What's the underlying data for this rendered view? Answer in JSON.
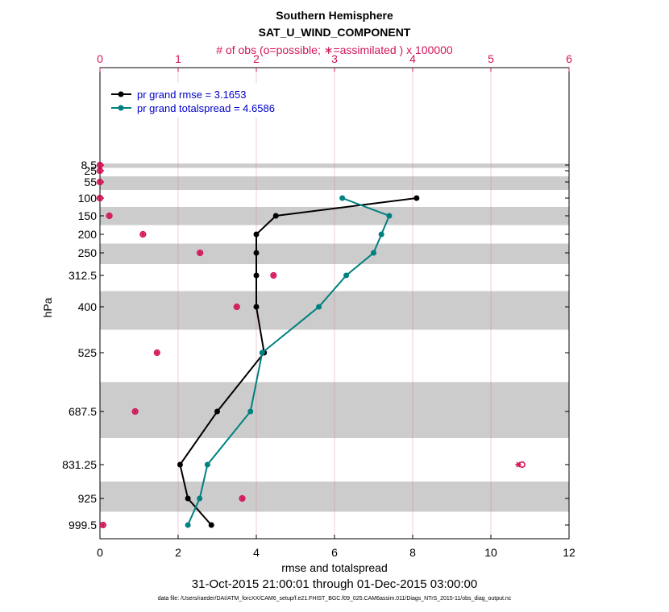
{
  "chart_data": {
    "type": "line",
    "title": "Southern Hemisphere",
    "subtitle": "SAT_U_WIND_COMPONENT",
    "top_axis_label": "# of obs (o=possible; ∗=assimilated ) x 100000",
    "xlabel": "rmse and totalspread",
    "ylabel": "hPa",
    "date_range": "31-Oct-2015 21:00:01 through 01-Dec-2015 03:00:00",
    "data_file": "data file: /Users/raeder/DAI/ATM_forcXX/CAM6_setup/f.e21.FHIST_BGC.f09_025.CAM6assim.011/Diags_NTrS_2015-11/obs_diag_output.nc",
    "xlim": [
      0,
      12
    ],
    "xticks": [
      "0",
      "2",
      "4",
      "6",
      "8",
      "10",
      "12"
    ],
    "top_xlim": [
      0,
      6
    ],
    "top_xticks": [
      "0",
      "1",
      "2",
      "3",
      "4",
      "5",
      "6"
    ],
    "levels": [
      8.5,
      25,
      55,
      100,
      150,
      200,
      250,
      312.5,
      400,
      525,
      687.5,
      831.25,
      925,
      999.5
    ],
    "level_labels": [
      "8.5",
      "25",
      "55",
      "100",
      "150",
      "200",
      "250",
      "312.5",
      "400",
      "525",
      "687.5",
      "831.25",
      "925",
      "999.5"
    ],
    "series": [
      {
        "name": "pr grand rmse = 3.1653",
        "color": "#000000",
        "levels": [
          100,
          150,
          200,
          250,
          312.5,
          400,
          525,
          687.5,
          831.25,
          925,
          999.5
        ],
        "values": [
          8.1,
          4.5,
          4.0,
          4.0,
          4.0,
          4.0,
          4.2,
          3.0,
          2.05,
          2.25,
          2.85
        ]
      },
      {
        "name": "pr grand totalspread = 4.6586",
        "color": "#008080",
        "levels": [
          100,
          150,
          200,
          250,
          312.5,
          400,
          525,
          687.5,
          831.25,
          925,
          999.5
        ],
        "values": [
          6.2,
          7.4,
          7.2,
          7.0,
          6.3,
          5.6,
          4.15,
          3.85,
          2.75,
          2.55,
          2.25
        ]
      }
    ],
    "obs_counts": {
      "color": "#d4145a",
      "levels": [
        8.5,
        25,
        55,
        100,
        150,
        200,
        250,
        312.5,
        400,
        525,
        687.5,
        831.25,
        925,
        999.5
      ],
      "possible": [
        0.0,
        0.0,
        0.0,
        0.0,
        0.12,
        0.55,
        1.28,
        2.22,
        1.75,
        0.73,
        0.45,
        5.4,
        1.82,
        0.04
      ],
      "assimilated": [
        0.0,
        0.0,
        0.0,
        0.0,
        0.12,
        0.55,
        1.28,
        2.22,
        1.75,
        0.73,
        0.45,
        5.35,
        1.82,
        0.04
      ]
    }
  }
}
